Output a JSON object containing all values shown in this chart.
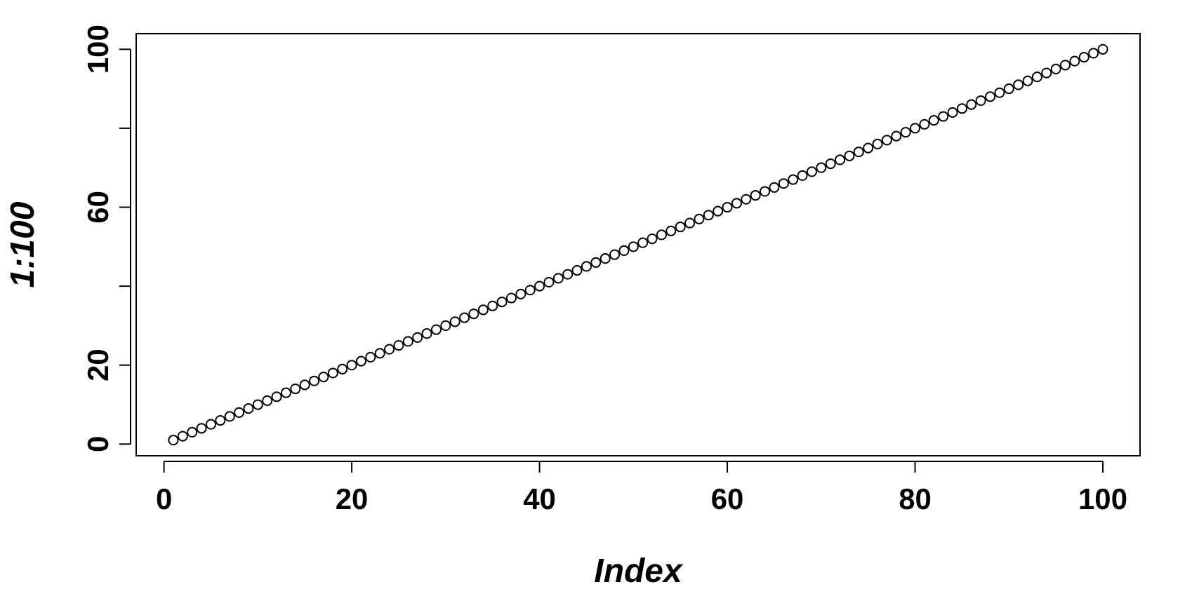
{
  "chart_data": {
    "type": "scatter",
    "xlabel": "Index",
    "ylabel": "1:100",
    "x": [
      1,
      2,
      3,
      4,
      5,
      6,
      7,
      8,
      9,
      10,
      11,
      12,
      13,
      14,
      15,
      16,
      17,
      18,
      19,
      20,
      21,
      22,
      23,
      24,
      25,
      26,
      27,
      28,
      29,
      30,
      31,
      32,
      33,
      34,
      35,
      36,
      37,
      38,
      39,
      40,
      41,
      42,
      43,
      44,
      45,
      46,
      47,
      48,
      49,
      50,
      51,
      52,
      53,
      54,
      55,
      56,
      57,
      58,
      59,
      60,
      61,
      62,
      63,
      64,
      65,
      66,
      67,
      68,
      69,
      70,
      71,
      72,
      73,
      74,
      75,
      76,
      77,
      78,
      79,
      80,
      81,
      82,
      83,
      84,
      85,
      86,
      87,
      88,
      89,
      90,
      91,
      92,
      93,
      94,
      95,
      96,
      97,
      98,
      99,
      100
    ],
    "values": [
      1,
      2,
      3,
      4,
      5,
      6,
      7,
      8,
      9,
      10,
      11,
      12,
      13,
      14,
      15,
      16,
      17,
      18,
      19,
      20,
      21,
      22,
      23,
      24,
      25,
      26,
      27,
      28,
      29,
      30,
      31,
      32,
      33,
      34,
      35,
      36,
      37,
      38,
      39,
      40,
      41,
      42,
      43,
      44,
      45,
      46,
      47,
      48,
      49,
      50,
      51,
      52,
      53,
      54,
      55,
      56,
      57,
      58,
      59,
      60,
      61,
      62,
      63,
      64,
      65,
      66,
      67,
      68,
      69,
      70,
      71,
      72,
      73,
      74,
      75,
      76,
      77,
      78,
      79,
      80,
      81,
      82,
      83,
      84,
      85,
      86,
      87,
      88,
      89,
      90,
      91,
      92,
      93,
      94,
      95,
      96,
      97,
      98,
      99,
      100
    ],
    "color": "#000000",
    "marker": "circle",
    "xlim": [
      -2.96,
      103.96
    ],
    "ylim": [
      -2.96,
      103.96
    ],
    "xticks": [
      0,
      20,
      40,
      60,
      80,
      100
    ],
    "yticks": [
      0,
      20,
      {
        "value": 40,
        "label": null
      },
      60,
      {
        "value": 80,
        "label": null
      },
      100
    ]
  }
}
